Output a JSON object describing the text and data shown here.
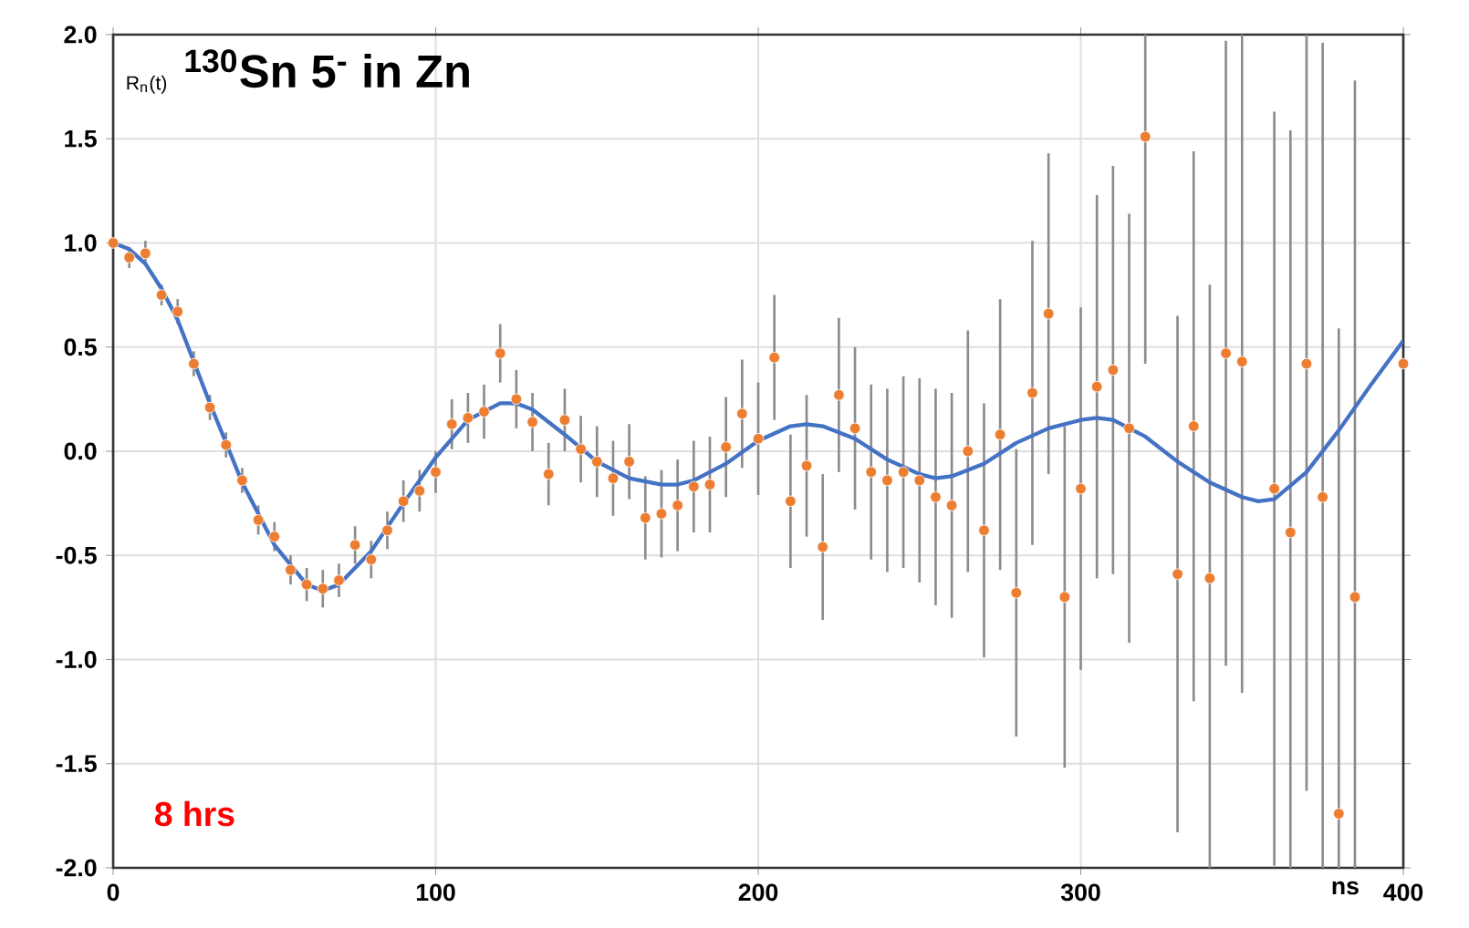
{
  "chart_data": {
    "type": "scatter",
    "title": "$^{130}$Sn 5$^{-}$  in Zn",
    "ylabel": "R$_{n}$(t)",
    "xlabel": "ns",
    "annotations": [
      "8 hrs"
    ],
    "xlim": [
      0,
      400
    ],
    "xticks": [
      0,
      100,
      200,
      300,
      400
    ],
    "ylim": [
      -2,
      2
    ],
    "yticks": [
      {
        "value": -2,
        "label": "-2.0"
      },
      {
        "value": -1.5,
        "label": "-1.5"
      },
      {
        "value": -1,
        "label": "-1.0"
      },
      {
        "value": -0.5,
        "label": "-0.5"
      },
      {
        "value": 0,
        "label": "0.0"
      },
      {
        "value": 0.5,
        "label": "0.5"
      },
      {
        "value": 1,
        "label": "1.0"
      },
      {
        "value": 1.5,
        "label": "1.5"
      },
      {
        "value": 2,
        "label": "2.0"
      }
    ],
    "grid": true,
    "series": [
      {
        "color": "#ed7d31",
        "marker": "circle",
        "x": [
          0,
          5,
          10,
          15,
          20,
          25,
          30,
          35,
          40,
          45,
          50,
          55,
          60,
          65,
          70,
          75,
          80,
          85,
          90,
          95,
          100,
          105,
          110,
          115,
          120,
          125,
          130,
          135,
          140,
          145,
          150,
          155,
          160,
          165,
          170,
          175,
          180,
          185,
          190,
          195,
          200,
          205,
          210,
          215,
          220,
          225,
          230,
          235,
          240,
          245,
          250,
          255,
          260,
          265,
          270,
          275,
          280,
          285,
          290,
          295,
          300,
          305,
          310,
          315,
          320,
          325,
          330,
          335,
          340,
          345,
          350,
          355,
          360,
          365,
          370,
          375,
          380,
          385,
          390,
          395,
          400
        ],
        "values": [
          1.0,
          0.93,
          0.95,
          0.75,
          0.67,
          0.42,
          0.21,
          0.03,
          -0.14,
          -0.33,
          -0.41,
          -0.57,
          -0.64,
          -0.66,
          -0.62,
          -0.45,
          -0.52,
          -0.38,
          -0.24,
          -0.19,
          -0.1,
          0.13,
          0.16,
          0.19,
          0.47,
          0.25,
          0.14,
          -0.11,
          0.15,
          0.01,
          -0.05,
          -0.13,
          -0.05,
          -0.32,
          -0.3,
          -0.26,
          -0.17,
          -0.16,
          0.02,
          0.18,
          0.06,
          0.45,
          -0.24,
          -0.07,
          -0.46,
          0.27,
          0.11,
          -0.1,
          -0.14,
          -0.1,
          -0.14,
          -0.22,
          -0.26,
          0.0,
          -0.38,
          0.08,
          -0.68,
          0.28,
          0.66,
          -0.7,
          -0.18,
          0.31,
          0.39,
          0.11,
          1.51,
          null,
          -0.59,
          0.12,
          -0.61,
          0.47,
          0.43,
          null,
          -0.18,
          -0.39,
          0.42,
          -0.22,
          -1.74,
          -0.7,
          null,
          null,
          0.42
        ],
        "errors": [
          null,
          0.05,
          0.06,
          0.05,
          0.06,
          0.06,
          0.06,
          0.06,
          0.06,
          0.07,
          0.07,
          0.07,
          0.08,
          0.09,
          0.08,
          0.09,
          0.09,
          0.09,
          0.1,
          0.1,
          0.1,
          0.12,
          0.12,
          0.13,
          0.14,
          0.14,
          0.14,
          0.15,
          0.15,
          0.16,
          0.17,
          0.18,
          0.18,
          0.2,
          0.21,
          0.22,
          0.22,
          0.23,
          0.24,
          0.26,
          0.27,
          0.3,
          0.32,
          0.34,
          0.35,
          0.37,
          0.39,
          0.42,
          0.44,
          0.46,
          0.49,
          0.52,
          0.54,
          0.58,
          0.61,
          0.65,
          0.69,
          0.73,
          0.77,
          0.82,
          0.87,
          0.92,
          0.98,
          1.03,
          [
            0.42,
            2
          ],
          null,
          1.24,
          1.32,
          [
            -2,
            0.8
          ],
          1.5,
          [
            -1.16,
            2
          ],
          null,
          1.81,
          [
            -2,
            1.54
          ],
          [
            -1.63,
            2
          ],
          [
            -2,
            1.96
          ],
          [
            -2,
            0.59
          ],
          [
            -2,
            1.78
          ],
          null,
          null,
          null
        ]
      },
      {
        "type": "line",
        "color": "#4472c4",
        "marker": "none",
        "line_style": "solid",
        "x": [
          0,
          5,
          10,
          15,
          20,
          30,
          40,
          50,
          60,
          65,
          70,
          80,
          90,
          100,
          110,
          120,
          125,
          130,
          140,
          150,
          160,
          170,
          175,
          180,
          190,
          200,
          210,
          215,
          220,
          230,
          240,
          250,
          255,
          260,
          270,
          280,
          290,
          300,
          305,
          310,
          320,
          330,
          340,
          350,
          355,
          360,
          370,
          380,
          390,
          400
        ],
        "values": [
          1.0,
          0.97,
          0.9,
          0.78,
          0.63,
          0.23,
          -0.15,
          -0.45,
          -0.64,
          -0.67,
          -0.64,
          -0.48,
          -0.25,
          -0.03,
          0.15,
          0.23,
          0.23,
          0.2,
          0.08,
          -0.05,
          -0.13,
          -0.16,
          -0.16,
          -0.14,
          -0.06,
          0.05,
          0.12,
          0.13,
          0.12,
          0.06,
          -0.04,
          -0.11,
          -0.13,
          -0.12,
          -0.06,
          0.04,
          0.11,
          0.15,
          0.16,
          0.15,
          0.07,
          -0.05,
          -0.15,
          -0.22,
          -0.24,
          -0.23,
          -0.1,
          0.1,
          0.32,
          0.53
        ]
      }
    ]
  }
}
